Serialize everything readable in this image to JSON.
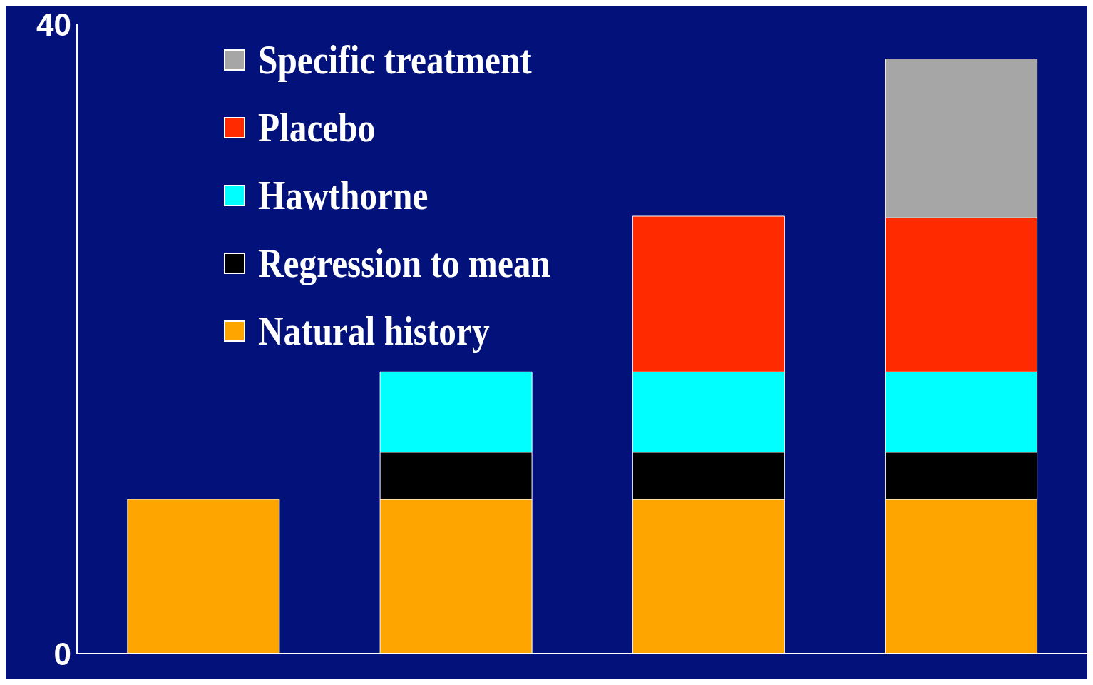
{
  "chart_data": {
    "type": "bar",
    "stacked": true,
    "categories": [
      null,
      null,
      null,
      null
    ],
    "series": [
      {
        "name": "Natural history",
        "color": "#ffa500",
        "values": [
          9.8,
          9.8,
          9.8,
          9.8
        ]
      },
      {
        "name": "Regression to mean",
        "color": "#000000",
        "values": [
          null,
          3,
          3,
          3
        ]
      },
      {
        "name": "Hawthorne",
        "color": "#00ffff",
        "values": [
          null,
          5.1,
          5.1,
          5.1
        ]
      },
      {
        "name": "Placebo",
        "color": "#ff2a00",
        "values": [
          null,
          null,
          9.9,
          9.8
        ]
      },
      {
        "name": "Specific treatment",
        "color": "#a6a6a6",
        "values": [
          null,
          null,
          null,
          10.1
        ]
      }
    ],
    "ylim": [
      0,
      40
    ],
    "yticks": [
      0,
      40
    ],
    "grid": false,
    "legend": "top left"
  }
}
